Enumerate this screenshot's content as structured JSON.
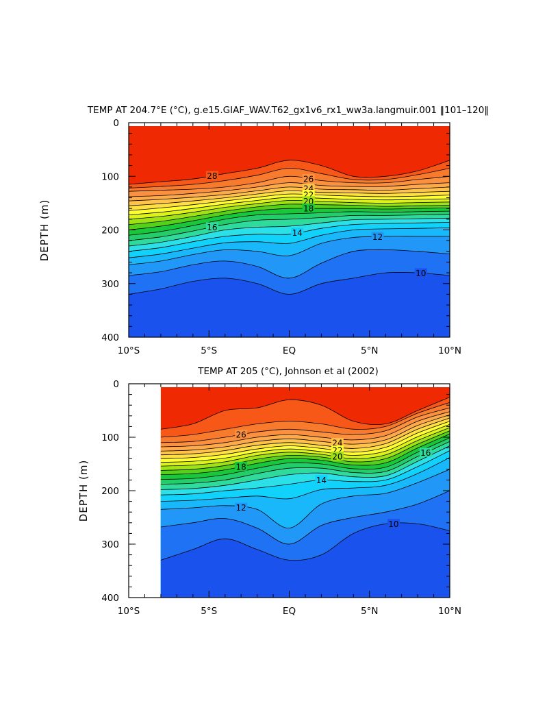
{
  "chart_data": [
    {
      "type": "contour",
      "title": "TEMP AT 204.7°E (°C), g.e15.GIAF_WAV.T62_gx1v6_rx1_ww3a.langmuir.001 ‖101–120‖",
      "xlabel": "",
      "ylabel": "DEPTH (m)",
      "xlim": [
        -10,
        10
      ],
      "ylim": [
        400,
        0
      ],
      "x_ticks": [
        {
          "value": -10,
          "label": "10°S"
        },
        {
          "value": -5,
          "label": "5°S"
        },
        {
          "value": 0,
          "label": "EQ"
        },
        {
          "value": 5,
          "label": "5°N"
        },
        {
          "value": 10,
          "label": "10°N"
        }
      ],
      "y_ticks": [
        {
          "value": 0,
          "label": "0"
        },
        {
          "value": 100,
          "label": "100"
        },
        {
          "value": 200,
          "label": "200"
        },
        {
          "value": 300,
          "label": "300"
        },
        {
          "value": 400,
          "label": "400"
        }
      ],
      "x_data_range": [
        -10,
        10
      ],
      "contour_interval": 1,
      "x": [
        -10,
        -8,
        -6,
        -4,
        -2,
        0,
        2,
        4,
        6,
        8,
        10
      ],
      "isotherms": [
        {
          "level": 28,
          "depths": [
            115,
            110,
            105,
            95,
            85,
            70,
            80,
            100,
            100,
            90,
            70
          ],
          "label": "28",
          "label_x": -4.8
        },
        {
          "level": 27,
          "depths": [
            122,
            119,
            115,
            108,
            98,
            85,
            95,
            106,
            106,
            97,
            85
          ]
        },
        {
          "level": 26,
          "depths": [
            128,
            126,
            124,
            120,
            112,
            100,
            108,
            112,
            112,
            106,
            100
          ],
          "label": "26",
          "label_x": 1.2
        },
        {
          "level": 25,
          "depths": [
            138,
            136,
            132,
            127,
            120,
            112,
            117,
            119,
            119,
            115,
            112
          ]
        },
        {
          "level": 24,
          "depths": [
            146,
            143,
            139,
            134,
            127,
            120,
            124,
            125,
            126,
            123,
            120
          ],
          "label": "24",
          "label_x": 1.2
        },
        {
          "level": 23,
          "depths": [
            155,
            151,
            146,
            140,
            133,
            127,
            130,
            131,
            132,
            130,
            128
          ]
        },
        {
          "level": 22,
          "depths": [
            164,
            159,
            153,
            146,
            139,
            133,
            135,
            137,
            138,
            137,
            135
          ],
          "label": "22",
          "label_x": 1.2
        },
        {
          "level": 21,
          "depths": [
            172,
            167,
            160,
            152,
            145,
            139,
            141,
            143,
            144,
            143,
            142
          ]
        },
        {
          "level": 20,
          "depths": [
            180,
            175,
            167,
            158,
            151,
            145,
            147,
            149,
            150,
            149,
            148
          ],
          "label": "20",
          "label_x": 1.2
        },
        {
          "level": 19,
          "depths": [
            190,
            184,
            175,
            165,
            157,
            152,
            153,
            154,
            156,
            155,
            154
          ]
        },
        {
          "level": 18,
          "depths": [
            200,
            193,
            183,
            172,
            164,
            160,
            160,
            160,
            161,
            160,
            159
          ],
          "label": "18",
          "label_x": 1.2
        },
        {
          "level": 17,
          "depths": [
            210,
            203,
            192,
            180,
            172,
            170,
            168,
            166,
            167,
            166,
            165
          ]
        },
        {
          "level": 16,
          "depths": [
            220,
            213,
            202,
            190,
            182,
            180,
            177,
            173,
            173,
            172,
            171
          ],
          "label": "16",
          "label_x": -4.8
        },
        {
          "level": 15,
          "depths": [
            230,
            223,
            212,
            200,
            195,
            193,
            187,
            181,
            180,
            179,
            178
          ]
        },
        {
          "level": 14,
          "depths": [
            240,
            233,
            222,
            212,
            208,
            208,
            197,
            190,
            188,
            187,
            186
          ],
          "label": "14",
          "label_x": 0.5
        },
        {
          "level": 13,
          "depths": [
            252,
            245,
            234,
            224,
            222,
            225,
            210,
            200,
            198,
            197,
            196
          ]
        },
        {
          "level": 12,
          "depths": [
            265,
            258,
            246,
            237,
            240,
            248,
            225,
            214,
            212,
            212,
            212
          ],
          "label": "12",
          "label_x": 5.5
        },
        {
          "level": 11,
          "depths": [
            285,
            278,
            265,
            258,
            268,
            290,
            262,
            240,
            237,
            240,
            245
          ]
        },
        {
          "level": 10,
          "depths": [
            320,
            310,
            296,
            290,
            300,
            320,
            300,
            290,
            280,
            280,
            285
          ],
          "label": "10",
          "label_x": 8.2
        }
      ]
    },
    {
      "type": "contour",
      "title": "TEMP AT 205 (°C), Johnson et al (2002)",
      "xlabel": "",
      "ylabel": "DEPTH (m)",
      "xlim": [
        -10,
        10
      ],
      "ylim": [
        400,
        0
      ],
      "x_ticks": [
        {
          "value": -10,
          "label": "10°S"
        },
        {
          "value": -5,
          "label": "5°S"
        },
        {
          "value": 0,
          "label": "EQ"
        },
        {
          "value": 5,
          "label": "5°N"
        },
        {
          "value": 10,
          "label": "10°N"
        }
      ],
      "y_ticks": [
        {
          "value": 0,
          "label": "0"
        },
        {
          "value": 100,
          "label": "100"
        },
        {
          "value": 200,
          "label": "200"
        },
        {
          "value": 300,
          "label": "300"
        },
        {
          "value": 400,
          "label": "400"
        }
      ],
      "x_data_range": [
        -8,
        10
      ],
      "contour_interval": 1,
      "x": [
        -8,
        -6,
        -4,
        -2,
        0,
        2,
        4,
        6,
        8,
        10
      ],
      "isotherms": [
        {
          "level": 28,
          "depths": [
            85,
            75,
            50,
            45,
            30,
            40,
            70,
            75,
            50,
            25
          ]
        },
        {
          "level": 27,
          "depths": [
            100,
            95,
            85,
            75,
            70,
            75,
            85,
            80,
            55,
            35
          ]
        },
        {
          "level": 26,
          "depths": [
            110,
            108,
            100,
            90,
            85,
            90,
            95,
            88,
            62,
            45
          ],
          "label": "26",
          "label_x": -3
        },
        {
          "level": 25,
          "depths": [
            118,
            116,
            110,
            100,
            95,
            100,
            105,
            97,
            70,
            52
          ]
        },
        {
          "level": 24,
          "depths": [
            126,
            124,
            118,
            108,
            103,
            108,
            113,
            105,
            78,
            58
          ],
          "label": "24",
          "label_x": 3
        },
        {
          "level": 23,
          "depths": [
            133,
            131,
            125,
            115,
            110,
            115,
            121,
            112,
            85,
            64
          ]
        },
        {
          "level": 22,
          "depths": [
            140,
            138,
            132,
            122,
            116,
            121,
            128,
            119,
            92,
            70
          ],
          "label": "22",
          "label_x": 3
        },
        {
          "level": 21,
          "depths": [
            147,
            145,
            139,
            128,
            122,
            127,
            134,
            126,
            99,
            76
          ]
        },
        {
          "level": 20,
          "depths": [
            154,
            152,
            146,
            134,
            128,
            132,
            140,
            133,
            106,
            82
          ],
          "label": "20",
          "label_x": 3
        },
        {
          "level": 19,
          "depths": [
            162,
            160,
            153,
            141,
            134,
            137,
            146,
            140,
            113,
            88
          ]
        },
        {
          "level": 18,
          "depths": [
            170,
            168,
            161,
            149,
            140,
            143,
            152,
            148,
            120,
            94
          ],
          "label": "18",
          "label_x": -3
        },
        {
          "level": 17,
          "depths": [
            179,
            177,
            170,
            158,
            148,
            150,
            159,
            156,
            128,
            101
          ]
        },
        {
          "level": 16,
          "depths": [
            188,
            186,
            180,
            168,
            158,
            158,
            166,
            164,
            136,
            108
          ],
          "label": "16",
          "label_x": 8.5
        },
        {
          "level": 15,
          "depths": [
            198,
            196,
            190,
            180,
            170,
            167,
            174,
            172,
            145,
            116
          ]
        },
        {
          "level": 14,
          "depths": [
            208,
            206,
            200,
            195,
            188,
            180,
            183,
            180,
            155,
            125
          ],
          "label": "14",
          "label_x": 2
        },
        {
          "level": 13,
          "depths": [
            220,
            218,
            214,
            210,
            215,
            198,
            195,
            190,
            168,
            138
          ]
        },
        {
          "level": 12,
          "depths": [
            235,
            232,
            228,
            235,
            270,
            225,
            210,
            205,
            185,
            160
          ],
          "label": "12",
          "label_x": -3
        },
        {
          "level": 11,
          "depths": [
            268,
            260,
            252,
            270,
            300,
            265,
            250,
            240,
            225,
            200
          ]
        },
        {
          "level": 10,
          "depths": [
            330,
            310,
            290,
            310,
            330,
            320,
            280,
            262,
            262,
            275
          ],
          "label": "10",
          "label_x": 6.5
        }
      ]
    }
  ]
}
